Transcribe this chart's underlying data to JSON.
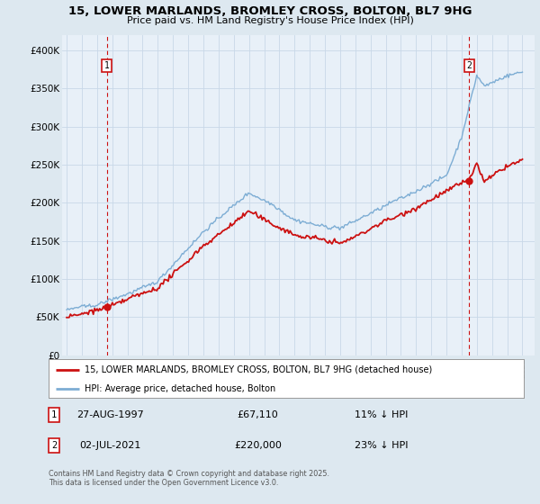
{
  "title": "15, LOWER MARLANDS, BROMLEY CROSS, BOLTON, BL7 9HG",
  "subtitle": "Price paid vs. HM Land Registry's House Price Index (HPI)",
  "ylim": [
    0,
    420000
  ],
  "yticks": [
    0,
    50000,
    100000,
    150000,
    200000,
    250000,
    300000,
    350000,
    400000
  ],
  "ytick_labels": [
    "£0",
    "£50K",
    "£100K",
    "£150K",
    "£200K",
    "£250K",
    "£300K",
    "£350K",
    "£400K"
  ],
  "xlim_start": 1994.7,
  "xlim_end": 2025.8,
  "xticks": [
    1995,
    1996,
    1997,
    1998,
    1999,
    2000,
    2001,
    2002,
    2003,
    2004,
    2005,
    2006,
    2007,
    2008,
    2009,
    2010,
    2011,
    2012,
    2013,
    2014,
    2015,
    2016,
    2017,
    2018,
    2019,
    2020,
    2021,
    2022,
    2023,
    2024,
    2025
  ],
  "hpi_color": "#7dadd4",
  "price_color": "#cc1111",
  "marker1_year": 1997.65,
  "marker1_price": 67110,
  "marker1_label": "1",
  "marker2_year": 2021.5,
  "marker2_price": 220000,
  "marker2_label": "2",
  "legend_line1": "15, LOWER MARLANDS, BROMLEY CROSS, BOLTON, BL7 9HG (detached house)",
  "legend_line2": "HPI: Average price, detached house, Bolton",
  "annot1_date": "27-AUG-1997",
  "annot1_price": "£67,110",
  "annot1_hpi": "11% ↓ HPI",
  "annot2_date": "02-JUL-2021",
  "annot2_price": "£220,000",
  "annot2_hpi": "23% ↓ HPI",
  "copyright": "Contains HM Land Registry data © Crown copyright and database right 2025.\nThis data is licensed under the Open Government Licence v3.0.",
  "bg_color": "#dde8f0",
  "plot_bg_color": "#e8f0f8",
  "grid_color": "#c8d8e8"
}
